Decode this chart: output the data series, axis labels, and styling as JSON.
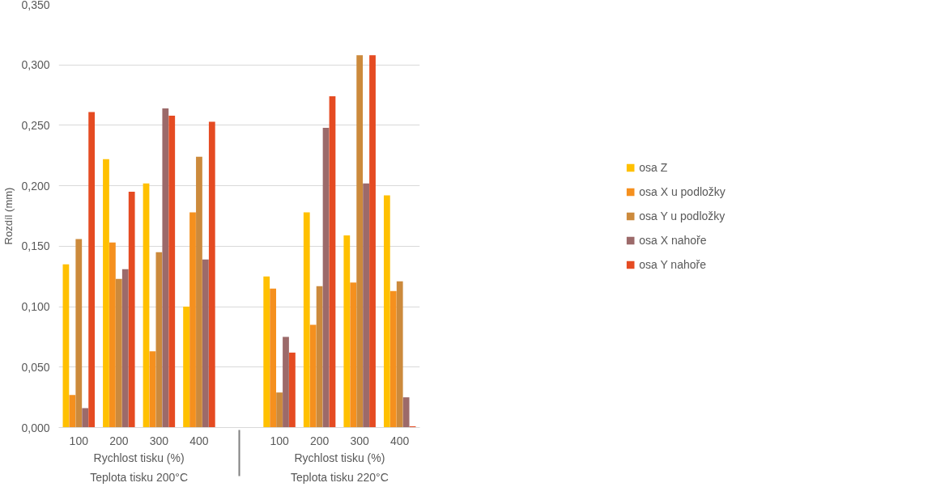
{
  "chart_data": {
    "type": "bar",
    "ylabel": "Rozdíl (mm)",
    "categories": [
      "100",
      "200",
      "300",
      "400",
      "100",
      "200",
      "300",
      "400"
    ],
    "annotations": [
      "Rychlost tisku (%)",
      "Rychlost tisku (%)",
      "Teplota tisku 200°C",
      "Teplota tisku 220°C"
    ],
    "series": [
      {
        "name": "osa Z",
        "color": "#ffc000",
        "values": [
          0.135,
          0.222,
          0.202,
          0.1,
          0.125,
          0.178,
          0.159,
          0.192
        ]
      },
      {
        "name": "osa X u podložky",
        "color": "#f5901e",
        "values": [
          0.027,
          0.153,
          0.063,
          0.178,
          0.115,
          0.085,
          0.12,
          0.113
        ]
      },
      {
        "name": "osa Y u podložky",
        "color": "#cc8a3c",
        "values": [
          0.156,
          0.123,
          0.145,
          0.224,
          0.029,
          0.117,
          0.308,
          0.121
        ]
      },
      {
        "name": "osa X nahoře",
        "color": "#9c6a6a",
        "values": [
          0.016,
          0.131,
          0.264,
          0.139,
          0.075,
          0.248,
          0.202,
          0.025
        ]
      },
      {
        "name": "osa Y nahoře",
        "color": "#e54b22",
        "values": [
          0.261,
          0.195,
          0.258,
          0.253,
          0.062,
          0.274,
          0.308,
          0.001
        ]
      }
    ],
    "ylim": [
      0,
      0.35
    ],
    "yticks": [
      {
        "value": 0,
        "label": "0,000"
      },
      {
        "value": 0.05,
        "label": "0,050"
      },
      {
        "value": 0.1,
        "label": "0,100"
      },
      {
        "value": 0.15,
        "label": "0,150"
      },
      {
        "value": 0.2,
        "label": "0,200"
      },
      {
        "value": 0.25,
        "label": "0,250"
      },
      {
        "value": 0.3,
        "label": "0,300"
      },
      {
        "value": 0.35,
        "label": "0,350"
      }
    ],
    "grid": "y",
    "legend": "right"
  }
}
